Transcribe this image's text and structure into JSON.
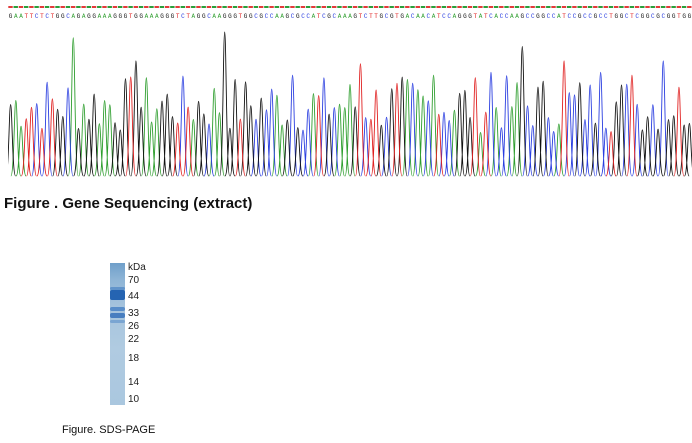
{
  "figure_sequencing": {
    "caption": "Figure . Gene Sequencing (extract)",
    "sequence": "GAATTCTCTGGCAGAGGAAAGGGTGGAAAGGGTCTAGGCAAGGGTGGCGCCAAGCGCCATCGCAAAGTCTTGCGTGACAACATCCAGGGTATCACCAAGCCGGCCATCCGCCGCCTGGCTCGGCGCGGTGG",
    "base_colors": {
      "A": "#2e9e2e",
      "C": "#2a3ee0",
      "G": "#111111",
      "T": "#e02020"
    }
  },
  "figure_sds_page": {
    "caption": "Figure. SDS-PAGE",
    "unit_label": "kDa",
    "markers": [
      "70",
      "44",
      "33",
      "26",
      "22",
      "18",
      "14",
      "10"
    ],
    "lane_color": "#a9c5de",
    "band_color": "#1f5fb0"
  }
}
